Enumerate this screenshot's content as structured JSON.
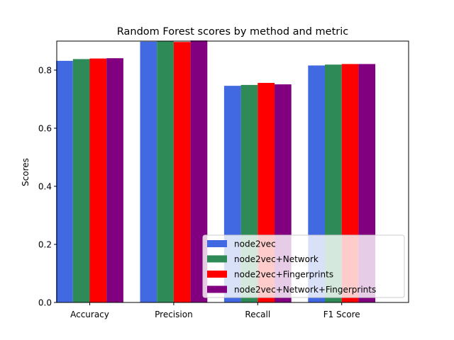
{
  "chart_data": {
    "type": "bar",
    "title": "Random Forest scores by method and metric",
    "xlabel": "",
    "ylabel": "Scores",
    "categories": [
      "Accuracy",
      "Precision",
      "Recall",
      "F1 Score"
    ],
    "ylim": [
      0,
      0.9
    ],
    "yticks": [
      "0.0",
      "0.2",
      "0.4",
      "0.6",
      "0.8"
    ],
    "legend_position": "bottom-right",
    "grid": false,
    "series": [
      {
        "name": "node2vec",
        "color": "#4169e1",
        "values": [
          0.832,
          0.898,
          0.746,
          0.816
        ]
      },
      {
        "name": "node2vec+Network",
        "color": "#2e8b57",
        "values": [
          0.838,
          0.899,
          0.749,
          0.819
        ]
      },
      {
        "name": "node2vec+Fingerprints",
        "color": "#ff0000",
        "values": [
          0.84,
          0.897,
          0.756,
          0.821
        ]
      },
      {
        "name": "node2vec+Network+Fingerprints",
        "color": "#800080",
        "values": [
          0.841,
          0.902,
          0.751,
          0.821
        ]
      }
    ]
  }
}
